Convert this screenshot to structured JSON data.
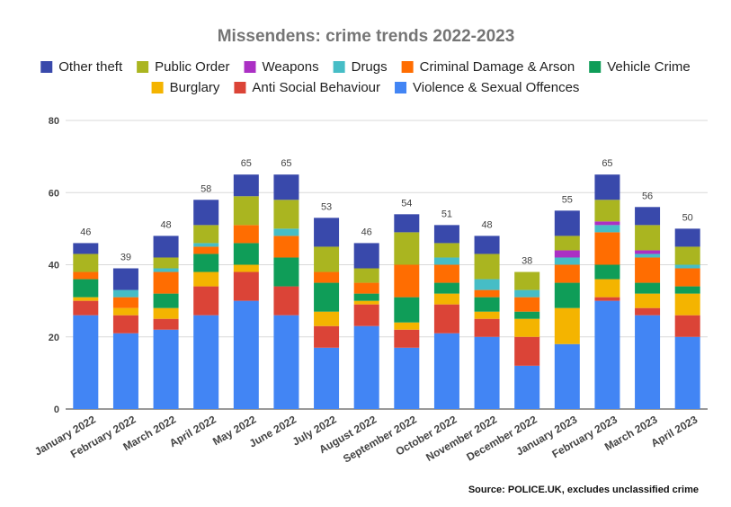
{
  "chart_data": {
    "type": "bar",
    "stacked": true,
    "title": "Missendens: crime trends 2022-2023",
    "source": "Source: POLICE.UK, excludes unclassified crime",
    "ylim": [
      0,
      80
    ],
    "yticks": [
      "0",
      "20",
      "40",
      "60",
      "80"
    ],
    "grid": true,
    "legend_position": "top",
    "categories": [
      "January 2022",
      "February 2022",
      "March 2022",
      "April 2022",
      "May 2022",
      "June 2022",
      "July 2022",
      "August 2022",
      "September 2022",
      "October 2022",
      "November 2022",
      "December 2022",
      "January 2023",
      "February 2023",
      "March 2023",
      "April 2023"
    ],
    "totals": [
      "46",
      "39",
      "48",
      "58",
      "65",
      "65",
      "53",
      "46",
      "54",
      "51",
      "48",
      "38",
      "55",
      "65",
      "56",
      "50"
    ],
    "series": [
      {
        "name": "Violence & Sexual Offences",
        "color": "#4285f4",
        "values": [
          26,
          21,
          22,
          26,
          30,
          26,
          17,
          23,
          17,
          21,
          20,
          12,
          18,
          30,
          26,
          20
        ]
      },
      {
        "name": "Anti Social Behaviour",
        "color": "#db4437",
        "values": [
          4,
          5,
          3,
          8,
          8,
          8,
          6,
          6,
          5,
          8,
          5,
          8,
          0,
          1,
          2,
          6
        ]
      },
      {
        "name": "Burglary",
        "color": "#f4b400",
        "values": [
          1,
          2,
          3,
          4,
          2,
          0,
          4,
          1,
          2,
          3,
          2,
          5,
          10,
          5,
          4,
          6
        ]
      },
      {
        "name": "Vehicle Crime",
        "color": "#0f9d58",
        "values": [
          5,
          0,
          4,
          5,
          6,
          8,
          8,
          2,
          7,
          3,
          4,
          2,
          7,
          4,
          3,
          2
        ]
      },
      {
        "name": "Criminal Damage & Arson",
        "color": "#ff6d01",
        "values": [
          2,
          3,
          6,
          2,
          5,
          6,
          3,
          3,
          9,
          5,
          2,
          4,
          5,
          9,
          7,
          5
        ]
      },
      {
        "name": "Drugs",
        "color": "#46bdc6",
        "values": [
          0,
          2,
          1,
          1,
          0,
          2,
          0,
          0,
          0,
          2,
          3,
          2,
          2,
          2,
          1,
          1
        ]
      },
      {
        "name": "Weapons",
        "color": "#ab30c4",
        "values": [
          0,
          0,
          0,
          0,
          0,
          0,
          0,
          0,
          0,
          0,
          0,
          0,
          2,
          1,
          1,
          0
        ]
      },
      {
        "name": "Public Order",
        "color": "#aab520",
        "values": [
          5,
          0,
          3,
          5,
          8,
          8,
          7,
          4,
          9,
          4,
          7,
          5,
          4,
          6,
          7,
          5
        ]
      },
      {
        "name": "Other theft",
        "color": "#3949ab",
        "values": [
          3,
          6,
          6,
          7,
          6,
          7,
          8,
          7,
          5,
          5,
          5,
          0,
          7,
          7,
          5,
          5
        ]
      }
    ]
  }
}
